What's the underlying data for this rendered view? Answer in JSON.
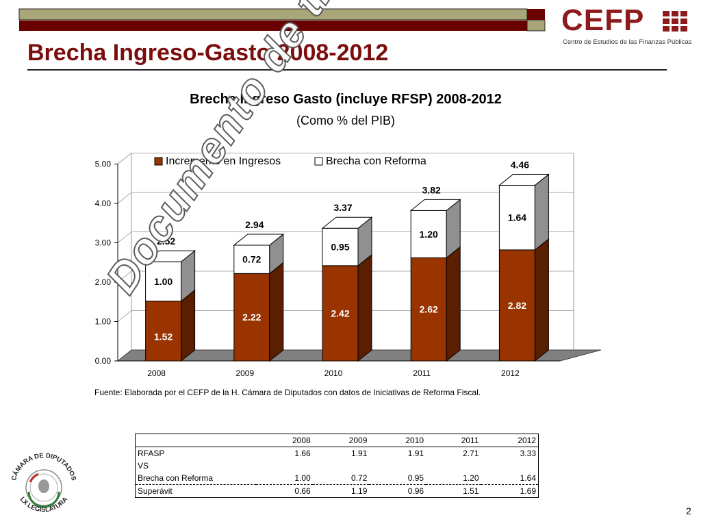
{
  "slide": {
    "title": "Brecha Ingreso-Gasto 2008-2012",
    "page_number": "2",
    "logo": {
      "name": "CEFP",
      "subtitle": "Centro de Estudios de las Finanzas Públicas"
    },
    "seal": {
      "top_text": "CÁMARA DE DIPUTADOS",
      "bottom_text": "LX LEGISLATURA"
    },
    "watermark": "Documento de trabajo",
    "source": "Fuente: Elaborada por el CEFP de la H. Cámara de Diputados con datos de Iniciativas de Reforma Fiscal."
  },
  "chart_data": {
    "type": "bar",
    "stacked": true,
    "title": "Brecha Ingreso Gasto (incluye RFSP) 2008-2012",
    "subtitle": "(Como % del PIB)",
    "categories": [
      "2008",
      "2009",
      "2010",
      "2011",
      "2012"
    ],
    "series": [
      {
        "name": "Incremento en Ingresos",
        "values": [
          1.52,
          2.22,
          2.42,
          2.62,
          2.82
        ],
        "color": "#993300"
      },
      {
        "name": "Brecha con Reforma",
        "values": [
          1.0,
          0.72,
          0.95,
          1.2,
          1.64
        ],
        "color": "#ffffff"
      }
    ],
    "totals": [
      2.52,
      2.94,
      3.37,
      3.82,
      4.46
    ],
    "ylim": [
      0,
      5
    ],
    "yticks": [
      "0.00",
      "1.00",
      "2.00",
      "3.00",
      "4.00",
      "5.00"
    ],
    "grid": true,
    "legend": "top",
    "three_d": true
  },
  "table": {
    "header": [
      "",
      "2008",
      "2009",
      "2010",
      "2011",
      "2012"
    ],
    "rows": [
      [
        "RFASP",
        "1.66",
        "1.91",
        "1.91",
        "2.71",
        "3.33"
      ],
      [
        "VS",
        "",
        "",
        "",
        "",
        ""
      ],
      [
        "Brecha con Reforma",
        "1.00",
        "0.72",
        "0.95",
        "1.20",
        "1.64"
      ],
      [
        "Superávit",
        "0.66",
        "1.19",
        "0.96",
        "1.51",
        "1.69"
      ]
    ]
  },
  "colors": {
    "accent": "#7b0d0d",
    "bar_bottom": "#993300",
    "bar_top": "#ffffff",
    "side_gray": "#808080",
    "top_band_olive": "#a9a77a",
    "top_band_red": "#6b0000"
  }
}
